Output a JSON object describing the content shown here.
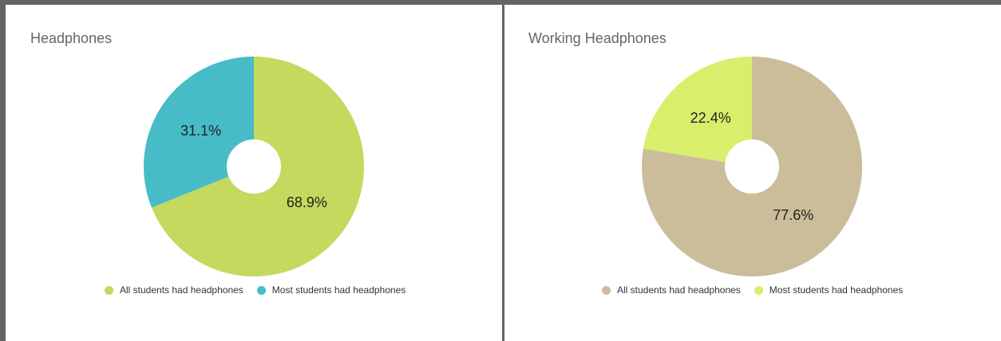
{
  "chart_data": [
    {
      "type": "pie",
      "title": "Headphones",
      "donut": true,
      "slices": [
        {
          "name": "All students had headphones",
          "value": 68.9,
          "label": "68.9%",
          "color": "#c5d95e"
        },
        {
          "name": "Most students had headphones",
          "value": 31.1,
          "label": "31.1%",
          "color": "#47bcc7"
        }
      ],
      "legend_position": "bottom"
    },
    {
      "type": "pie",
      "title": "Working Headphones",
      "donut": true,
      "slices": [
        {
          "name": "All students had headphones",
          "value": 77.6,
          "label": "77.6%",
          "color": "#cbbd99"
        },
        {
          "name": "Most students had headphones",
          "value": 22.4,
          "label": "22.4%",
          "color": "#d9ee6a"
        }
      ],
      "legend_position": "bottom"
    }
  ]
}
